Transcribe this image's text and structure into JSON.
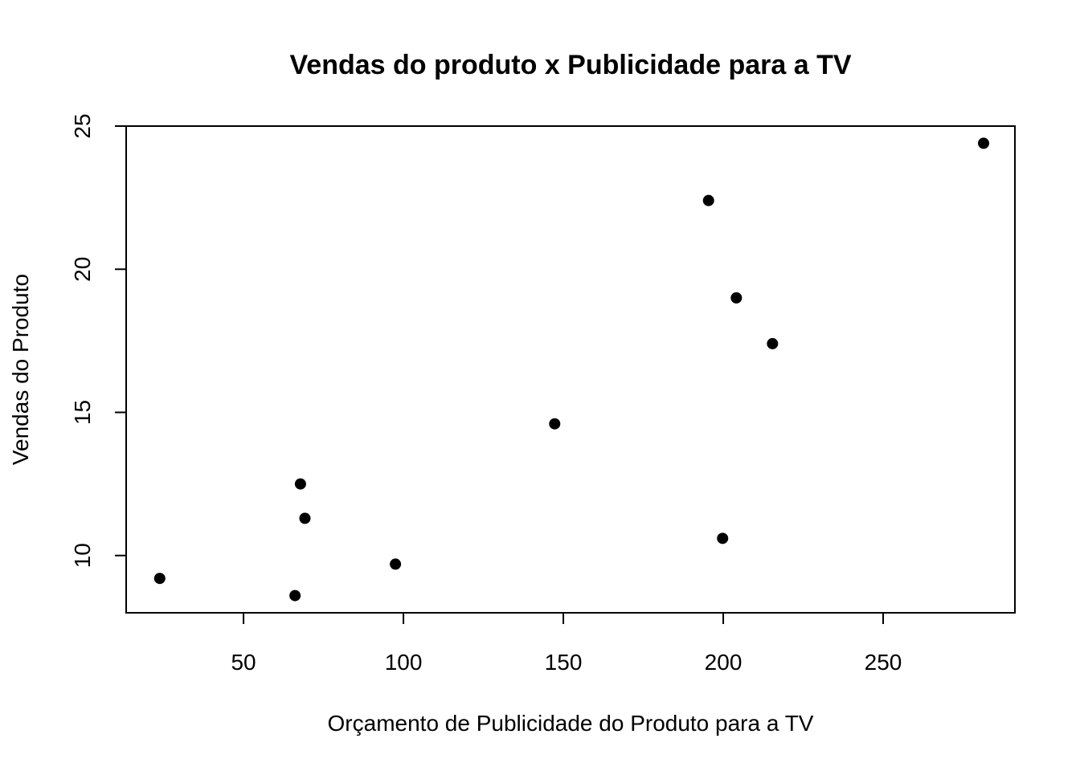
{
  "chart_data": {
    "type": "scatter",
    "title": "Vendas do produto x Publicidade para a TV",
    "xlabel": "Orçamento de Publicidade do Produto para a TV",
    "ylabel": "Vendas do Produto",
    "xlim": [
      13.3,
      291.2
    ],
    "ylim": [
      8.0,
      25.0
    ],
    "x_ticks": [
      50,
      100,
      150,
      200,
      250
    ],
    "y_ticks": [
      10,
      15,
      20,
      25
    ],
    "grid": false,
    "legend": "none",
    "point_color": "#000000",
    "points": [
      {
        "x": 23.8,
        "y": 9.2
      },
      {
        "x": 66.1,
        "y": 8.6
      },
      {
        "x": 67.8,
        "y": 12.5
      },
      {
        "x": 69.2,
        "y": 11.3
      },
      {
        "x": 97.5,
        "y": 9.7
      },
      {
        "x": 147.3,
        "y": 14.6
      },
      {
        "x": 195.4,
        "y": 22.4
      },
      {
        "x": 199.8,
        "y": 10.6
      },
      {
        "x": 204.1,
        "y": 19.0
      },
      {
        "x": 215.4,
        "y": 17.4
      },
      {
        "x": 281.4,
        "y": 24.4
      }
    ]
  }
}
